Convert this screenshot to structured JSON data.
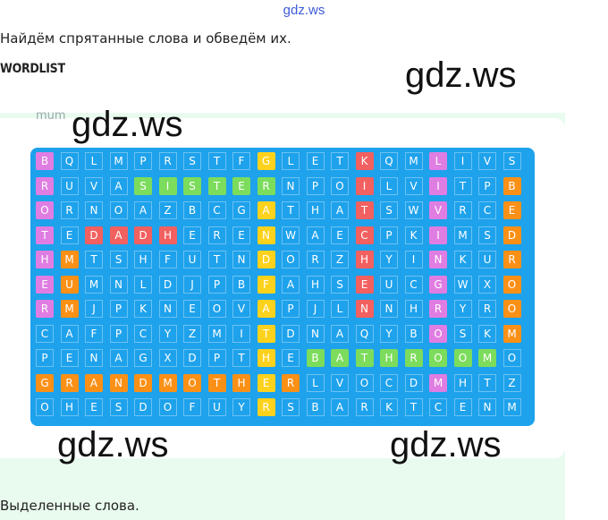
{
  "watermark_top": "gdz.ws",
  "instruction": "Найдём спрятанные слова и обведём их.",
  "wordlist_label": "WORDLIST",
  "faint_text": "mum",
  "watermarks": [
    "gdz.ws",
    "gdz.ws",
    "gdz.ws",
    "gdz.ws"
  ],
  "bottom_text": "Выделенные слова.",
  "colors": {
    "grid_blue": "#1ea2ec",
    "pink": "#e07de2",
    "orange": "#fb9016",
    "yellow": "#fdd21c",
    "red": "#f26060",
    "green": "#7cdc5c"
  },
  "grid_rows": [
    "BQLMPRSTFGLETKQMLIVS",
    "RUVASISTERNPOILVITPB",
    "ORNOAZBCGATHATSWVRCE",
    "TEDADHERENWAECPKIMSD",
    "HMTSHFUTNDORZHYINKUR",
    "EUMNLDJPBFAHSEUCGWXO",
    "RMJPKNEOVAPJLNNHRYRO",
    "CAFPCYZMITDNAQYBOSKM",
    "PENAGXDPTHEBATHROOMO",
    "GRANDMOTHERLVOCDMHTZ",
    "OHESDOFUYRSBARKTCENM"
  ],
  "grid_colors": [
    "PBBBBBBBBYBBBRBBPBBB",
    "PBBBGGGGGGBBBRBBPBBO",
    "PBBBBBBBBYBBBRBBPBBO",
    "PBRRRRBBBYBBBRBBPBBO",
    "POBBBBBBBYBBBRBBPBBO",
    "POBBBBBBBYBBBRBBPBBO",
    "POBBBBBBBYBBBRBBPBBO",
    "BBBBBBBBBYBBBBBBPBBO",
    "BBBBBBBBBYBGGGGGGGGB",
    "OOOOOOOOOYOBBBBBPBBB",
    "BBBBBBBBBYBBBBBBBBBB"
  ]
}
